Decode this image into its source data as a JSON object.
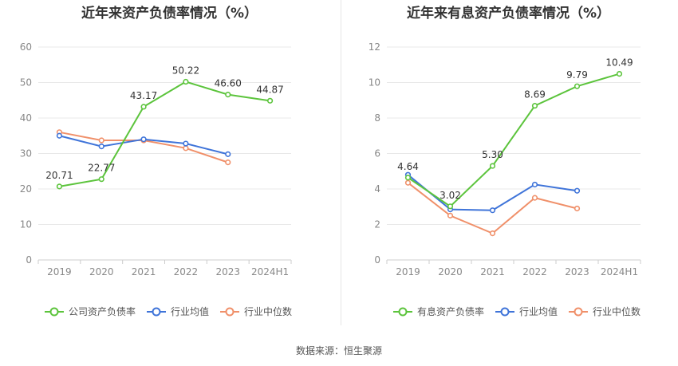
{
  "source_text": "数据来源：恒生聚源",
  "chart_data": [
    {
      "type": "line",
      "title": "近年来资产负债率情况（%）",
      "categories": [
        "2019",
        "2020",
        "2021",
        "2022",
        "2023",
        "2024H1"
      ],
      "ylim": [
        0,
        60
      ],
      "yticks": [
        0,
        10,
        20,
        30,
        40,
        50,
        60
      ],
      "grid": true,
      "legend_position": "bottom",
      "series": [
        {
          "name": "公司资产负债率",
          "color": "#5cc43c",
          "values": [
            20.71,
            22.77,
            43.17,
            50.22,
            46.6,
            44.87
          ],
          "labels": [
            "20.71",
            "22.77",
            "43.17",
            "50.22",
            "46.60",
            "44.87"
          ]
        },
        {
          "name": "行业均值",
          "color": "#3f74d9",
          "values": [
            35.0,
            32.0,
            34.0,
            32.8,
            29.8,
            null
          ]
        },
        {
          "name": "行业中位数",
          "color": "#f0906a",
          "values": [
            36.0,
            33.7,
            33.7,
            31.5,
            27.5,
            null
          ]
        }
      ]
    },
    {
      "type": "line",
      "title": "近年来有息资产负债率情况（%）",
      "categories": [
        "2019",
        "2020",
        "2021",
        "2022",
        "2023",
        "2024H1"
      ],
      "ylim": [
        0,
        12
      ],
      "yticks": [
        0,
        2,
        4,
        6,
        8,
        10,
        12
      ],
      "grid": true,
      "legend_position": "bottom",
      "series": [
        {
          "name": "有息资产负债率",
          "color": "#5cc43c",
          "values": [
            4.64,
            3.02,
            5.3,
            8.69,
            9.79,
            10.49
          ],
          "labels": [
            "4.64",
            "3.02",
            "5.30",
            "8.69",
            "9.79",
            "10.49"
          ]
        },
        {
          "name": "行业均值",
          "color": "#3f74d9",
          "values": [
            4.8,
            2.85,
            2.8,
            4.25,
            3.9,
            null
          ]
        },
        {
          "name": "行业中位数",
          "color": "#f0906a",
          "values": [
            4.35,
            2.5,
            1.5,
            3.5,
            2.9,
            null
          ]
        }
      ]
    }
  ]
}
